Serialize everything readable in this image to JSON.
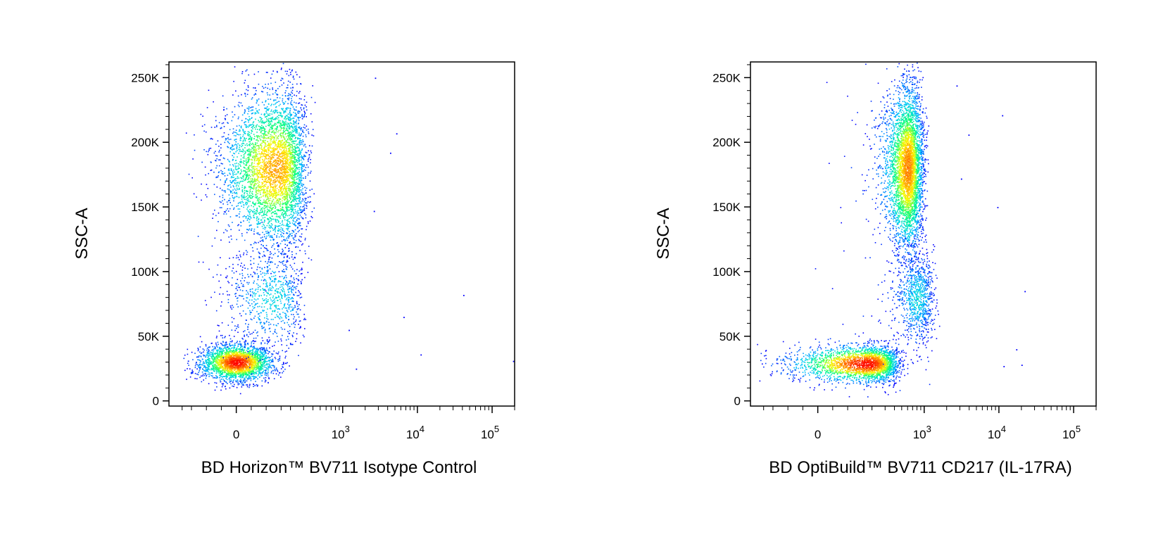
{
  "chart_data": [
    {
      "type": "scatter",
      "subtype": "flow-cytometry-density-dot-plot",
      "xlabel": "BD Horizon™ BV711 Isotype Control",
      "ylabel": "SSC-A",
      "x_scale": "biexponential",
      "x_ticks": [
        {
          "value": 0,
          "label": "0",
          "exp": ""
        },
        {
          "value": 1000,
          "label": "10",
          "exp": "3"
        },
        {
          "value": 10000,
          "label": "10",
          "exp": "4"
        },
        {
          "value": 100000,
          "label": "10",
          "exp": "5"
        }
      ],
      "y_ticks": [
        {
          "value": 0,
          "label": "0"
        },
        {
          "value": 50000,
          "label": "50K"
        },
        {
          "value": 100000,
          "label": "100K"
        },
        {
          "value": 150000,
          "label": "150K"
        },
        {
          "value": 200000,
          "label": "200K"
        },
        {
          "value": 250000,
          "label": "250K"
        }
      ],
      "xlim": [
        -300,
        200000
      ],
      "ylim": [
        -4000,
        262144
      ],
      "colormap": [
        "#0000ff",
        "#00c8ff",
        "#00ff80",
        "#ffff00",
        "#ff8000",
        "#ff0000"
      ],
      "populations": [
        {
          "x_center": 0,
          "x_spread": 60,
          "y_center": 30000,
          "y_spread": 7000,
          "count": 2600,
          "peak_density": 1.0
        },
        {
          "x_center": 130,
          "x_spread": 90,
          "y_center": 180000,
          "y_spread": 30000,
          "count": 4200,
          "peak_density": 0.75
        },
        {
          "x_center": 120,
          "x_spread": 80,
          "y_center": 80000,
          "y_spread": 20000,
          "count": 800,
          "peak_density": 0.25
        }
      ],
      "sparse_events": [
        {
          "x": 2700,
          "y": 250000
        },
        {
          "x": 5200,
          "y": 207000
        },
        {
          "x": 4300,
          "y": 192000
        },
        {
          "x": 2600,
          "y": 147000
        },
        {
          "x": 41000,
          "y": 82000
        },
        {
          "x": 6500,
          "y": 65000
        },
        {
          "x": 11000,
          "y": 36000
        },
        {
          "x": 190000,
          "y": 31000
        },
        {
          "x": 1500,
          "y": 25000
        },
        {
          "x": 1200,
          "y": 55000
        }
      ]
    },
    {
      "type": "scatter",
      "subtype": "flow-cytometry-density-dot-plot",
      "xlabel": "BD OptiBuild™ BV711 CD217 (IL-17RA)",
      "ylabel": "SSC-A",
      "x_scale": "biexponential",
      "x_ticks": [
        {
          "value": 0,
          "label": "0",
          "exp": ""
        },
        {
          "value": 1000,
          "label": "10",
          "exp": "3"
        },
        {
          "value": 10000,
          "label": "10",
          "exp": "4"
        },
        {
          "value": 100000,
          "label": "10",
          "exp": "5"
        }
      ],
      "y_ticks": [
        {
          "value": 0,
          "label": "0"
        },
        {
          "value": 50000,
          "label": "50K"
        },
        {
          "value": 100000,
          "label": "100K"
        },
        {
          "value": 150000,
          "label": "150K"
        },
        {
          "value": 200000,
          "label": "200K"
        },
        {
          "value": 250000,
          "label": "250K"
        }
      ],
      "xlim": [
        -300,
        200000
      ],
      "ylim": [
        -4000,
        262144
      ],
      "colormap": [
        "#0000ff",
        "#00c8ff",
        "#00ff80",
        "#ffff00",
        "#ff8000",
        "#ff0000"
      ],
      "populations": [
        {
          "x_center": 170,
          "x_spread": 130,
          "y_center": 29000,
          "y_spread": 7000,
          "count": 2600,
          "peak_density": 1.0
        },
        {
          "x_center": 600,
          "x_spread": 170,
          "y_center": 180000,
          "y_spread": 32000,
          "count": 4200,
          "peak_density": 0.8
        },
        {
          "x_center": 800,
          "x_spread": 250,
          "y_center": 80000,
          "y_spread": 18000,
          "count": 900,
          "peak_density": 0.25
        }
      ],
      "sparse_events": [
        {
          "x": 11000,
          "y": 221000
        },
        {
          "x": 9500,
          "y": 150000
        },
        {
          "x": 22000,
          "y": 85000
        },
        {
          "x": 20000,
          "y": 28000
        },
        {
          "x": 11500,
          "y": 27000
        },
        {
          "x": 17000,
          "y": 40000
        },
        {
          "x": 2700,
          "y": 244000
        },
        {
          "x": 3900,
          "y": 206000
        },
        {
          "x": 3100,
          "y": 172000
        }
      ]
    }
  ]
}
